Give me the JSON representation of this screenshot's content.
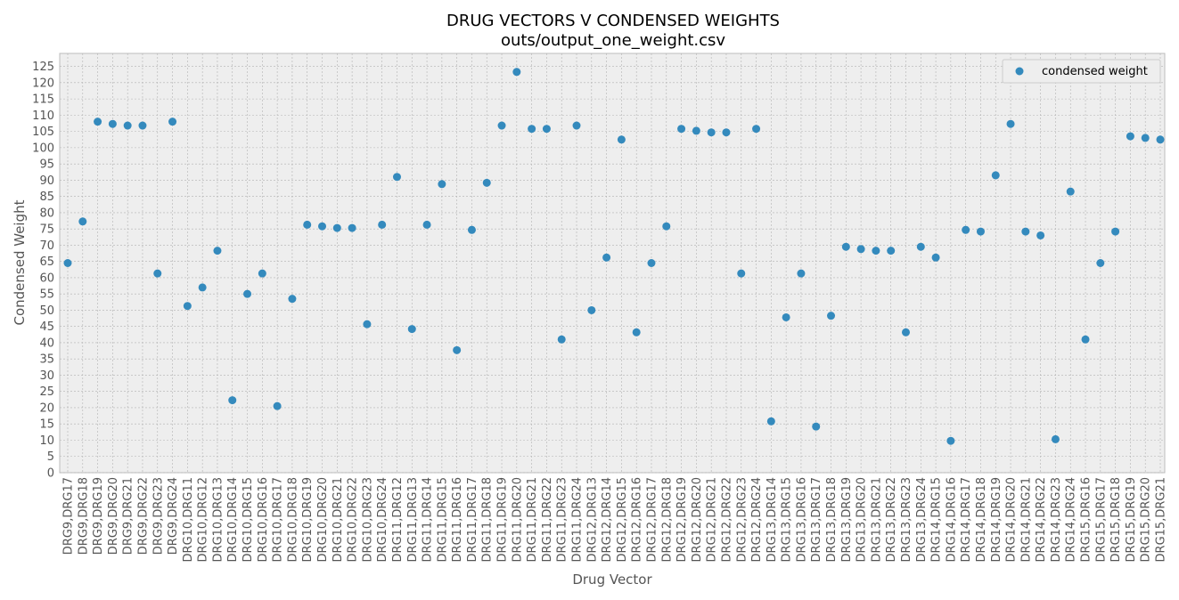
{
  "chart_data": {
    "type": "scatter",
    "title": "DRUG VECTORS V CONDENSED WEIGHTS",
    "subtitle": "outs/output_one_weight.csv",
    "xlabel": "Drug Vector",
    "ylabel": "Condensed Weight",
    "ylim": [
      0,
      129
    ],
    "yticks": [
      0,
      5,
      10,
      15,
      20,
      25,
      30,
      35,
      40,
      45,
      50,
      55,
      60,
      65,
      70,
      75,
      80,
      85,
      90,
      95,
      100,
      105,
      110,
      115,
      120,
      125
    ],
    "grid": true,
    "legend_position": "top-right",
    "series": [
      {
        "name": "condensed weight",
        "color": "#348abd",
        "categories": [
          "DRG9,DRG17",
          "DRG9,DRG18",
          "DRG9,DRG19",
          "DRG9,DRG20",
          "DRG9,DRG21",
          "DRG9,DRG22",
          "DRG9,DRG23",
          "DRG9,DRG24",
          "DRG10,DRG11",
          "DRG10,DRG12",
          "DRG10,DRG13",
          "DRG10,DRG14",
          "DRG10,DRG15",
          "DRG10,DRG16",
          "DRG10,DRG17",
          "DRG10,DRG18",
          "DRG10,DRG19",
          "DRG10,DRG20",
          "DRG10,DRG21",
          "DRG10,DRG22",
          "DRG10,DRG23",
          "DRG10,DRG24",
          "DRG11,DRG12",
          "DRG11,DRG13",
          "DRG11,DRG14",
          "DRG11,DRG15",
          "DRG11,DRG16",
          "DRG11,DRG17",
          "DRG11,DRG18",
          "DRG11,DRG19",
          "DRG11,DRG20",
          "DRG11,DRG21",
          "DRG11,DRG22",
          "DRG11,DRG23",
          "DRG11,DRG24",
          "DRG12,DRG13",
          "DRG12,DRG14",
          "DRG12,DRG15",
          "DRG12,DRG16",
          "DRG12,DRG17",
          "DRG12,DRG18",
          "DRG12,DRG19",
          "DRG12,DRG20",
          "DRG12,DRG21",
          "DRG12,DRG22",
          "DRG12,DRG23",
          "DRG12,DRG24",
          "DRG13,DRG14",
          "DRG13,DRG15",
          "DRG13,DRG16",
          "DRG13,DRG17",
          "DRG13,DRG18",
          "DRG13,DRG19",
          "DRG13,DRG20",
          "DRG13,DRG21",
          "DRG13,DRG22",
          "DRG13,DRG23",
          "DRG13,DRG24",
          "DRG14,DRG15",
          "DRG14,DRG16",
          "DRG14,DRG17",
          "DRG14,DRG18",
          "DRG14,DRG19",
          "DRG14,DRG20",
          "DRG14,DRG21",
          "DRG14,DRG22",
          "DRG14,DRG23",
          "DRG14,DRG24",
          "DRG15,DRG16",
          "DRG15,DRG17",
          "DRG15,DRG18",
          "DRG15,DRG19",
          "DRG15,DRG20",
          "DRG15,DRG21"
        ],
        "values": [
          64.5,
          77.3,
          108.0,
          107.3,
          106.8,
          106.8,
          61.3,
          108.0,
          51.3,
          57.0,
          68.3,
          22.3,
          55.0,
          61.3,
          20.5,
          53.5,
          76.3,
          75.8,
          75.3,
          75.3,
          45.7,
          76.3,
          91.0,
          44.2,
          76.3,
          88.8,
          37.7,
          74.7,
          89.2,
          106.8,
          123.3,
          105.8,
          105.8,
          41.0,
          106.8,
          50.0,
          66.2,
          102.5,
          43.2,
          64.5,
          75.8,
          105.8,
          105.2,
          104.7,
          104.7,
          61.3,
          105.8,
          15.8,
          47.8,
          61.3,
          14.2,
          48.3,
          69.5,
          68.8,
          68.3,
          68.3,
          43.2,
          69.5,
          66.2,
          9.8,
          74.7,
          74.2,
          91.5,
          107.3,
          74.2,
          73.0,
          10.3,
          86.5,
          41.0,
          64.5,
          74.2,
          103.5,
          103.0,
          102.5
        ]
      }
    ]
  }
}
